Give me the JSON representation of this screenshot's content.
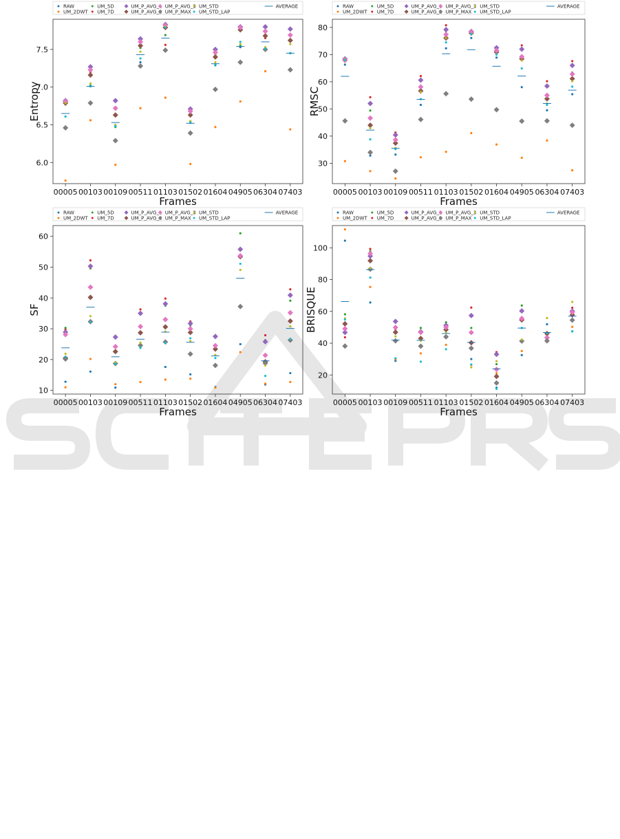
{
  "legend_entries": [
    {
      "name": "RAW",
      "color": "#1f77b4",
      "marker": "dot"
    },
    {
      "name": "UM_2DWT",
      "color": "#ff7f0e",
      "marker": "dot"
    },
    {
      "name": "UM_5D",
      "color": "#2ca02c",
      "marker": "dot"
    },
    {
      "name": "UM_7D",
      "color": "#d62728",
      "marker": "dot"
    },
    {
      "name": "UM_P_AVG_1",
      "color": "#9467bd",
      "marker": "diamond"
    },
    {
      "name": "UM_P_AVG_2",
      "color": "#8c564b",
      "marker": "diamond"
    },
    {
      "name": "UM_P_AVG_3",
      "color": "#e377c2",
      "marker": "diamond"
    },
    {
      "name": "UM_P_MAX",
      "color": "#7f7f7f",
      "marker": "diamond"
    },
    {
      "name": "UM_STD",
      "color": "#bcbd22",
      "marker": "dot"
    },
    {
      "name": "UM_STD_LAP",
      "color": "#17becf",
      "marker": "dot"
    },
    {
      "name": "AVERAGE",
      "color": "#1f77b4",
      "marker": "line"
    }
  ],
  "chart_data": [
    {
      "type": "scatter",
      "xlabel": "Frames",
      "ylabel": "Entropy",
      "categories": [
        "00005",
        "00103",
        "00109",
        "00511",
        "01103",
        "01502",
        "01604",
        "04905",
        "06304",
        "07403"
      ],
      "ylim": [
        5.72,
        7.9
      ],
      "yticks": [
        6.0,
        6.5,
        7.0,
        7.5
      ],
      "ytick_labels": [
        "6.0",
        "6.5",
        "7.0",
        "7.5"
      ],
      "legend_position": "top",
      "series": [
        {
          "name": "RAW",
          "values": [
            6.61,
            7.02,
            6.49,
            7.33,
            7.8,
            6.53,
            7.29,
            7.53,
            7.52,
            7.45
          ]
        },
        {
          "name": "UM_2DWT",
          "values": [
            5.76,
            6.56,
            5.97,
            6.72,
            6.86,
            5.98,
            6.47,
            6.81,
            7.21,
            6.44
          ]
        },
        {
          "name": "UM_5D",
          "values": [
            6.77,
            7.02,
            6.47,
            7.52,
            7.69,
            6.54,
            7.42,
            7.55,
            7.52,
            7.23
          ]
        },
        {
          "name": "UM_7D",
          "values": [
            6.81,
            7.2,
            6.64,
            7.59,
            7.56,
            6.68,
            7.44,
            7.77,
            7.65,
            7.61
          ]
        },
        {
          "name": "UM_P_AVG_1",
          "values": [
            6.82,
            7.27,
            6.82,
            7.64,
            7.83,
            6.71,
            7.5,
            7.8,
            7.8,
            7.77
          ]
        },
        {
          "name": "UM_P_AVG_2",
          "values": [
            6.79,
            7.16,
            6.63,
            7.55,
            7.79,
            6.63,
            7.4,
            7.76,
            7.68,
            7.62
          ]
        },
        {
          "name": "UM_P_AVG_3",
          "values": [
            6.81,
            7.23,
            6.72,
            7.6,
            7.82,
            6.68,
            7.46,
            7.79,
            7.74,
            7.69
          ]
        },
        {
          "name": "UM_P_MAX",
          "values": [
            6.46,
            6.79,
            6.29,
            7.28,
            7.49,
            6.39,
            6.97,
            7.33,
            7.5,
            7.23
          ]
        },
        {
          "name": "UM_STD",
          "values": [
            6.79,
            7.05,
            6.5,
            7.47,
            7.8,
            6.55,
            7.33,
            7.57,
            7.53,
            7.57
          ]
        },
        {
          "name": "UM_STD_LAP",
          "values": [
            6.61,
            7.01,
            6.48,
            7.38,
            7.79,
            6.53,
            7.3,
            7.6,
            7.51,
            7.45
          ]
        },
        {
          "name": "AVERAGE",
          "values": [
            6.65,
            7.01,
            6.53,
            7.43,
            7.65,
            6.52,
            7.31,
            7.54,
            7.6,
            7.45
          ]
        }
      ]
    },
    {
      "type": "scatter",
      "xlabel": "Frames",
      "ylabel": "RMSC",
      "categories": [
        "00005",
        "00103",
        "00109",
        "00511",
        "01103",
        "01502",
        "01604",
        "04905",
        "06304",
        "07403"
      ],
      "ylim": [
        22.5,
        83
      ],
      "yticks": [
        30,
        40,
        50,
        60,
        70,
        80
      ],
      "ytick_labels": [
        "30",
        "40",
        "50",
        "60",
        "70",
        "80"
      ],
      "legend_position": "top",
      "series": [
        {
          "name": "RAW",
          "values": [
            66.3,
            32.8,
            33.2,
            51.5,
            72.3,
            76.1,
            68.9,
            58.0,
            49.5,
            55.4
          ]
        },
        {
          "name": "UM_2DWT",
          "values": [
            30.8,
            27.1,
            24.4,
            32.2,
            34.2,
            41.1,
            36.9,
            32.0,
            38.4,
            27.4
          ]
        },
        {
          "name": "UM_5D",
          "values": [
            67.9,
            49.4,
            37.6,
            57.3,
            78.6,
            78.2,
            71.4,
            69.4,
            55.1,
            63.4
          ]
        },
        {
          "name": "UM_7D",
          "values": [
            68.4,
            54.3,
            41.3,
            62.1,
            80.8,
            78.9,
            72.5,
            73.4,
            60.2,
            67.6
          ]
        },
        {
          "name": "UM_P_AVG_1",
          "values": [
            68.4,
            52.0,
            40.4,
            60.6,
            79.2,
            78.5,
            72.5,
            72.0,
            58.4,
            66.0
          ]
        },
        {
          "name": "UM_P_AVG_2",
          "values": [
            67.9,
            44.0,
            37.4,
            56.6,
            76.1,
            77.9,
            70.9,
            68.4,
            53.7,
            61.1
          ]
        },
        {
          "name": "UM_P_AVG_3",
          "values": [
            68.0,
            46.6,
            38.6,
            58.1,
            77.4,
            78.3,
            71.5,
            69.2,
            55.0,
            62.8
          ]
        },
        {
          "name": "UM_P_MAX",
          "values": [
            45.6,
            34.0,
            27.1,
            46.1,
            55.6,
            53.6,
            49.7,
            45.5,
            45.6,
            44.0
          ]
        },
        {
          "name": "UM_STD",
          "values": [
            68.3,
            42.9,
            35.6,
            56.3,
            76.1,
            77.6,
            70.1,
            67.8,
            52.0,
            60.2
          ]
        },
        {
          "name": "UM_STD_LAP",
          "values": [
            68.0,
            38.8,
            35.2,
            53.6,
            74.5,
            77.6,
            70.0,
            64.9,
            51.5,
            58.2
          ]
        },
        {
          "name": "AVERAGE",
          "values": [
            62.0,
            42.2,
            35.5,
            53.5,
            70.3,
            71.8,
            65.7,
            62.1,
            52.0,
            56.9
          ]
        }
      ]
    },
    {
      "type": "scatter",
      "xlabel": "Frames",
      "ylabel": "SF",
      "categories": [
        "00005",
        "00103",
        "00109",
        "00511",
        "01103",
        "01502",
        "01604",
        "04905",
        "06304",
        "07403"
      ],
      "ylim": [
        8.8,
        63.5
      ],
      "yticks": [
        10,
        20,
        30,
        40,
        50,
        60
      ],
      "ytick_labels": [
        "10",
        "20",
        "30",
        "40",
        "50",
        "60"
      ],
      "legend_position": "top",
      "series": [
        {
          "name": "RAW",
          "values": [
            12.8,
            16.1,
            10.9,
            23.8,
            17.6,
            15.2,
            11.1,
            25.0,
            11.9,
            15.6
          ]
        },
        {
          "name": "UM_2DWT",
          "values": [
            11.0,
            20.2,
            12.0,
            12.7,
            13.5,
            13.8,
            10.9,
            22.4,
            12.2,
            12.7
          ]
        },
        {
          "name": "UM_5D",
          "values": [
            30.3,
            49.6,
            27.6,
            34.9,
            37.5,
            31.1,
            27.1,
            61.0,
            26.3,
            39.1
          ]
        },
        {
          "name": "UM_7D",
          "values": [
            29.7,
            52.2,
            27.5,
            36.3,
            39.8,
            32.4,
            27.8,
            53.2,
            27.9,
            42.8
          ]
        },
        {
          "name": "UM_P_AVG_1",
          "values": [
            28.9,
            50.3,
            27.3,
            35.0,
            38.1,
            31.7,
            27.5,
            55.8,
            25.8,
            40.9
          ]
        },
        {
          "name": "UM_P_AVG_2",
          "values": [
            20.5,
            40.2,
            22.6,
            28.7,
            30.6,
            28.8,
            23.4,
            53.4,
            19.3,
            32.5
          ]
        },
        {
          "name": "UM_P_AVG_3",
          "values": [
            28.1,
            43.5,
            24.2,
            30.7,
            33.0,
            30.0,
            24.5,
            53.7,
            21.4,
            35.2
          ]
        },
        {
          "name": "UM_P_MAX",
          "values": [
            20.2,
            32.3,
            18.7,
            24.6,
            25.7,
            21.8,
            18.1,
            37.2,
            18.8,
            26.3
          ]
        },
        {
          "name": "UM_STD",
          "values": [
            21.9,
            34.1,
            19.0,
            25.5,
            29.1,
            26.0,
            21.5,
            49.1,
            18.1,
            30.8
          ]
        },
        {
          "name": "UM_STD_LAP",
          "values": [
            20.9,
            32.2,
            18.6,
            23.9,
            25.4,
            26.9,
            20.5,
            51.1,
            14.7,
            26.6
          ]
        },
        {
          "name": "AVERAGE",
          "values": [
            23.8,
            37.0,
            20.9,
            26.6,
            28.9,
            25.6,
            21.2,
            46.4,
            19.6,
            30.1
          ]
        }
      ]
    },
    {
      "type": "scatter",
      "xlabel": "Frames",
      "ylabel": "BRISQUE",
      "categories": [
        "00005",
        "00103",
        "00109",
        "00511",
        "01103",
        "01502",
        "01604",
        "04905",
        "06304",
        "07403"
      ],
      "ylim": [
        8,
        114
      ],
      "yticks": [
        20,
        40,
        60,
        80,
        100
      ],
      "ytick_labels": [
        "20",
        "40",
        "60",
        "80",
        "100"
      ],
      "legend_position": "top",
      "series": [
        {
          "name": "RAW",
          "values": [
            104.5,
            65.6,
            28.9,
            43.1,
            48.1,
            30.0,
            12.0,
            32.5,
            51.9,
            47.5
          ]
        },
        {
          "name": "UM_2DWT",
          "values": [
            111.6,
            75.4,
            29.9,
            33.6,
            39.0,
            26.3,
            21.1,
            35.1,
            44.8,
            50.3
          ]
        },
        {
          "name": "UM_5D",
          "values": [
            58.2,
            97.9,
            41.9,
            49.6,
            53.1,
            49.6,
            26.8,
            63.7,
            45.3,
            58.9
          ]
        },
        {
          "name": "UM_7D",
          "values": [
            43.7,
            99.3,
            48.8,
            47.1,
            51.7,
            62.4,
            34.4,
            56.3,
            44.9,
            62.3
          ]
        },
        {
          "name": "UM_P_AVG_1",
          "values": [
            46.8,
            94.8,
            53.7,
            47.2,
            51.2,
            57.4,
            33.0,
            60.3,
            43.5,
            60.2
          ]
        },
        {
          "name": "UM_P_AVG_2",
          "values": [
            52.2,
            91.9,
            46.9,
            43.0,
            48.5,
            40.3,
            19.1,
            54.6,
            46.1,
            57.8
          ]
        },
        {
          "name": "UM_P_AVG_3",
          "values": [
            49.1,
            96.4,
            49.9,
            46.8,
            50.1,
            46.7,
            23.5,
            55.5,
            43.4,
            59.5
          ]
        },
        {
          "name": "UM_P_MAX",
          "values": [
            38.2,
            86.5,
            41.5,
            38.1,
            44.0,
            36.8,
            15.0,
            41.3,
            41.5,
            54.5
          ]
        },
        {
          "name": "UM_STD",
          "values": [
            55.6,
            87.2,
            44.3,
            41.6,
            46.5,
            24.8,
            28.7,
            42.3,
            55.8,
            66.0
          ]
        },
        {
          "name": "UM_STD_LAP",
          "values": [
            54.9,
            81.3,
            30.5,
            28.4,
            36.2,
            26.6,
            11.3,
            49.6,
            46.3,
            47.4
          ]
        },
        {
          "name": "AVERAGE",
          "values": [
            66.2,
            86.3,
            42.0,
            41.8,
            46.1,
            40.5,
            23.9,
            49.5,
            46.7,
            57.0
          ]
        }
      ]
    }
  ]
}
